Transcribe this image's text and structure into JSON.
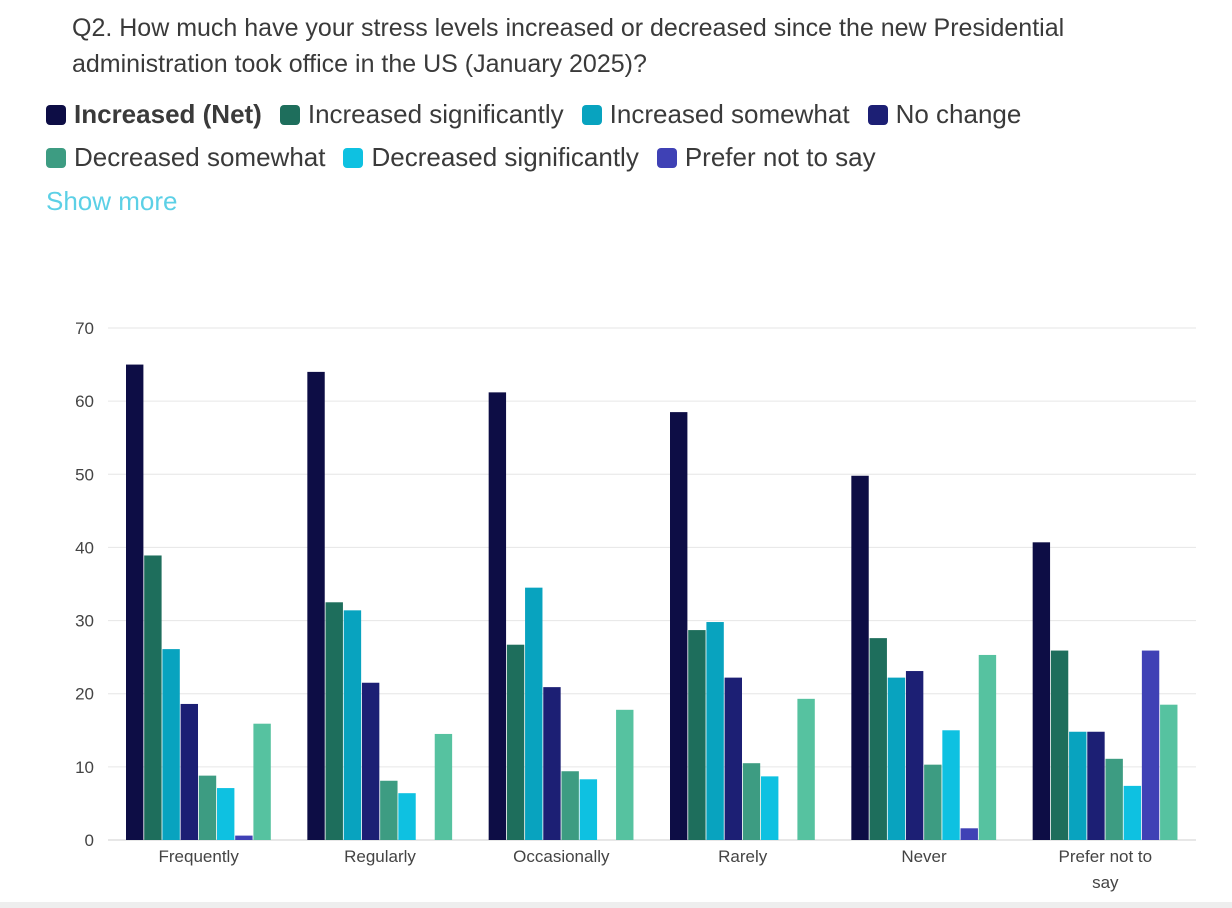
{
  "question": "Q2. How much have your stress levels increased or decreased since the new Presidential administration took office in the US (January 2025)?",
  "show_more_label": "Show more",
  "legend": [
    {
      "name": "Increased (Net)",
      "color": "#0d0d45",
      "bold": true
    },
    {
      "name": "Increased significantly",
      "color": "#1e6e5c",
      "bold": false
    },
    {
      "name": "Increased somewhat",
      "color": "#08a3bf",
      "bold": false
    },
    {
      "name": "No change",
      "color": "#1c1f74",
      "bold": false
    },
    {
      "name": "Decreased somewhat",
      "color": "#3d9c82",
      "bold": false
    },
    {
      "name": "Decreased significantly",
      "color": "#0ec1e1",
      "bold": false
    },
    {
      "name": "Prefer not to say",
      "color": "#3f41b5",
      "bold": false
    }
  ],
  "chart_data": {
    "type": "bar",
    "categories": [
      "Frequently",
      "Regularly",
      "Occasionally",
      "Rarely",
      "Never",
      "Prefer not to say"
    ],
    "series": [
      {
        "name": "Increased (Net)",
        "color": "#0d0d45",
        "values": [
          65,
          64,
          61.2,
          58.5,
          49.8,
          40.7
        ]
      },
      {
        "name": "Increased significantly",
        "color": "#1e6e5c",
        "values": [
          38.9,
          32.5,
          26.7,
          28.7,
          27.6,
          25.9
        ]
      },
      {
        "name": "Increased somewhat",
        "color": "#08a3bf",
        "values": [
          26.1,
          31.4,
          34.5,
          29.8,
          22.2,
          14.8
        ]
      },
      {
        "name": "No change",
        "color": "#1c1f74",
        "values": [
          18.6,
          21.5,
          20.9,
          22.2,
          23.1,
          14.8
        ]
      },
      {
        "name": "Decreased somewhat",
        "color": "#3d9c82",
        "values": [
          8.8,
          8.1,
          9.4,
          10.5,
          10.3,
          11.1
        ]
      },
      {
        "name": "Decreased significantly",
        "color": "#0ec1e1",
        "values": [
          7.1,
          6.4,
          8.3,
          8.7,
          15,
          7.4
        ]
      },
      {
        "name": "Prefer not to say",
        "color": "#3f41b5",
        "values": [
          0.6,
          0,
          0,
          0,
          1.6,
          25.9
        ]
      },
      {
        "name": "",
        "color": "#56c2a0",
        "values": [
          15.9,
          14.5,
          17.8,
          19.3,
          25.3,
          18.5
        ]
      }
    ],
    "ylim": [
      0,
      70
    ],
    "yticks": [
      0,
      10,
      20,
      30,
      40,
      50,
      60,
      70
    ],
    "grid": true,
    "legend_position": "top"
  }
}
